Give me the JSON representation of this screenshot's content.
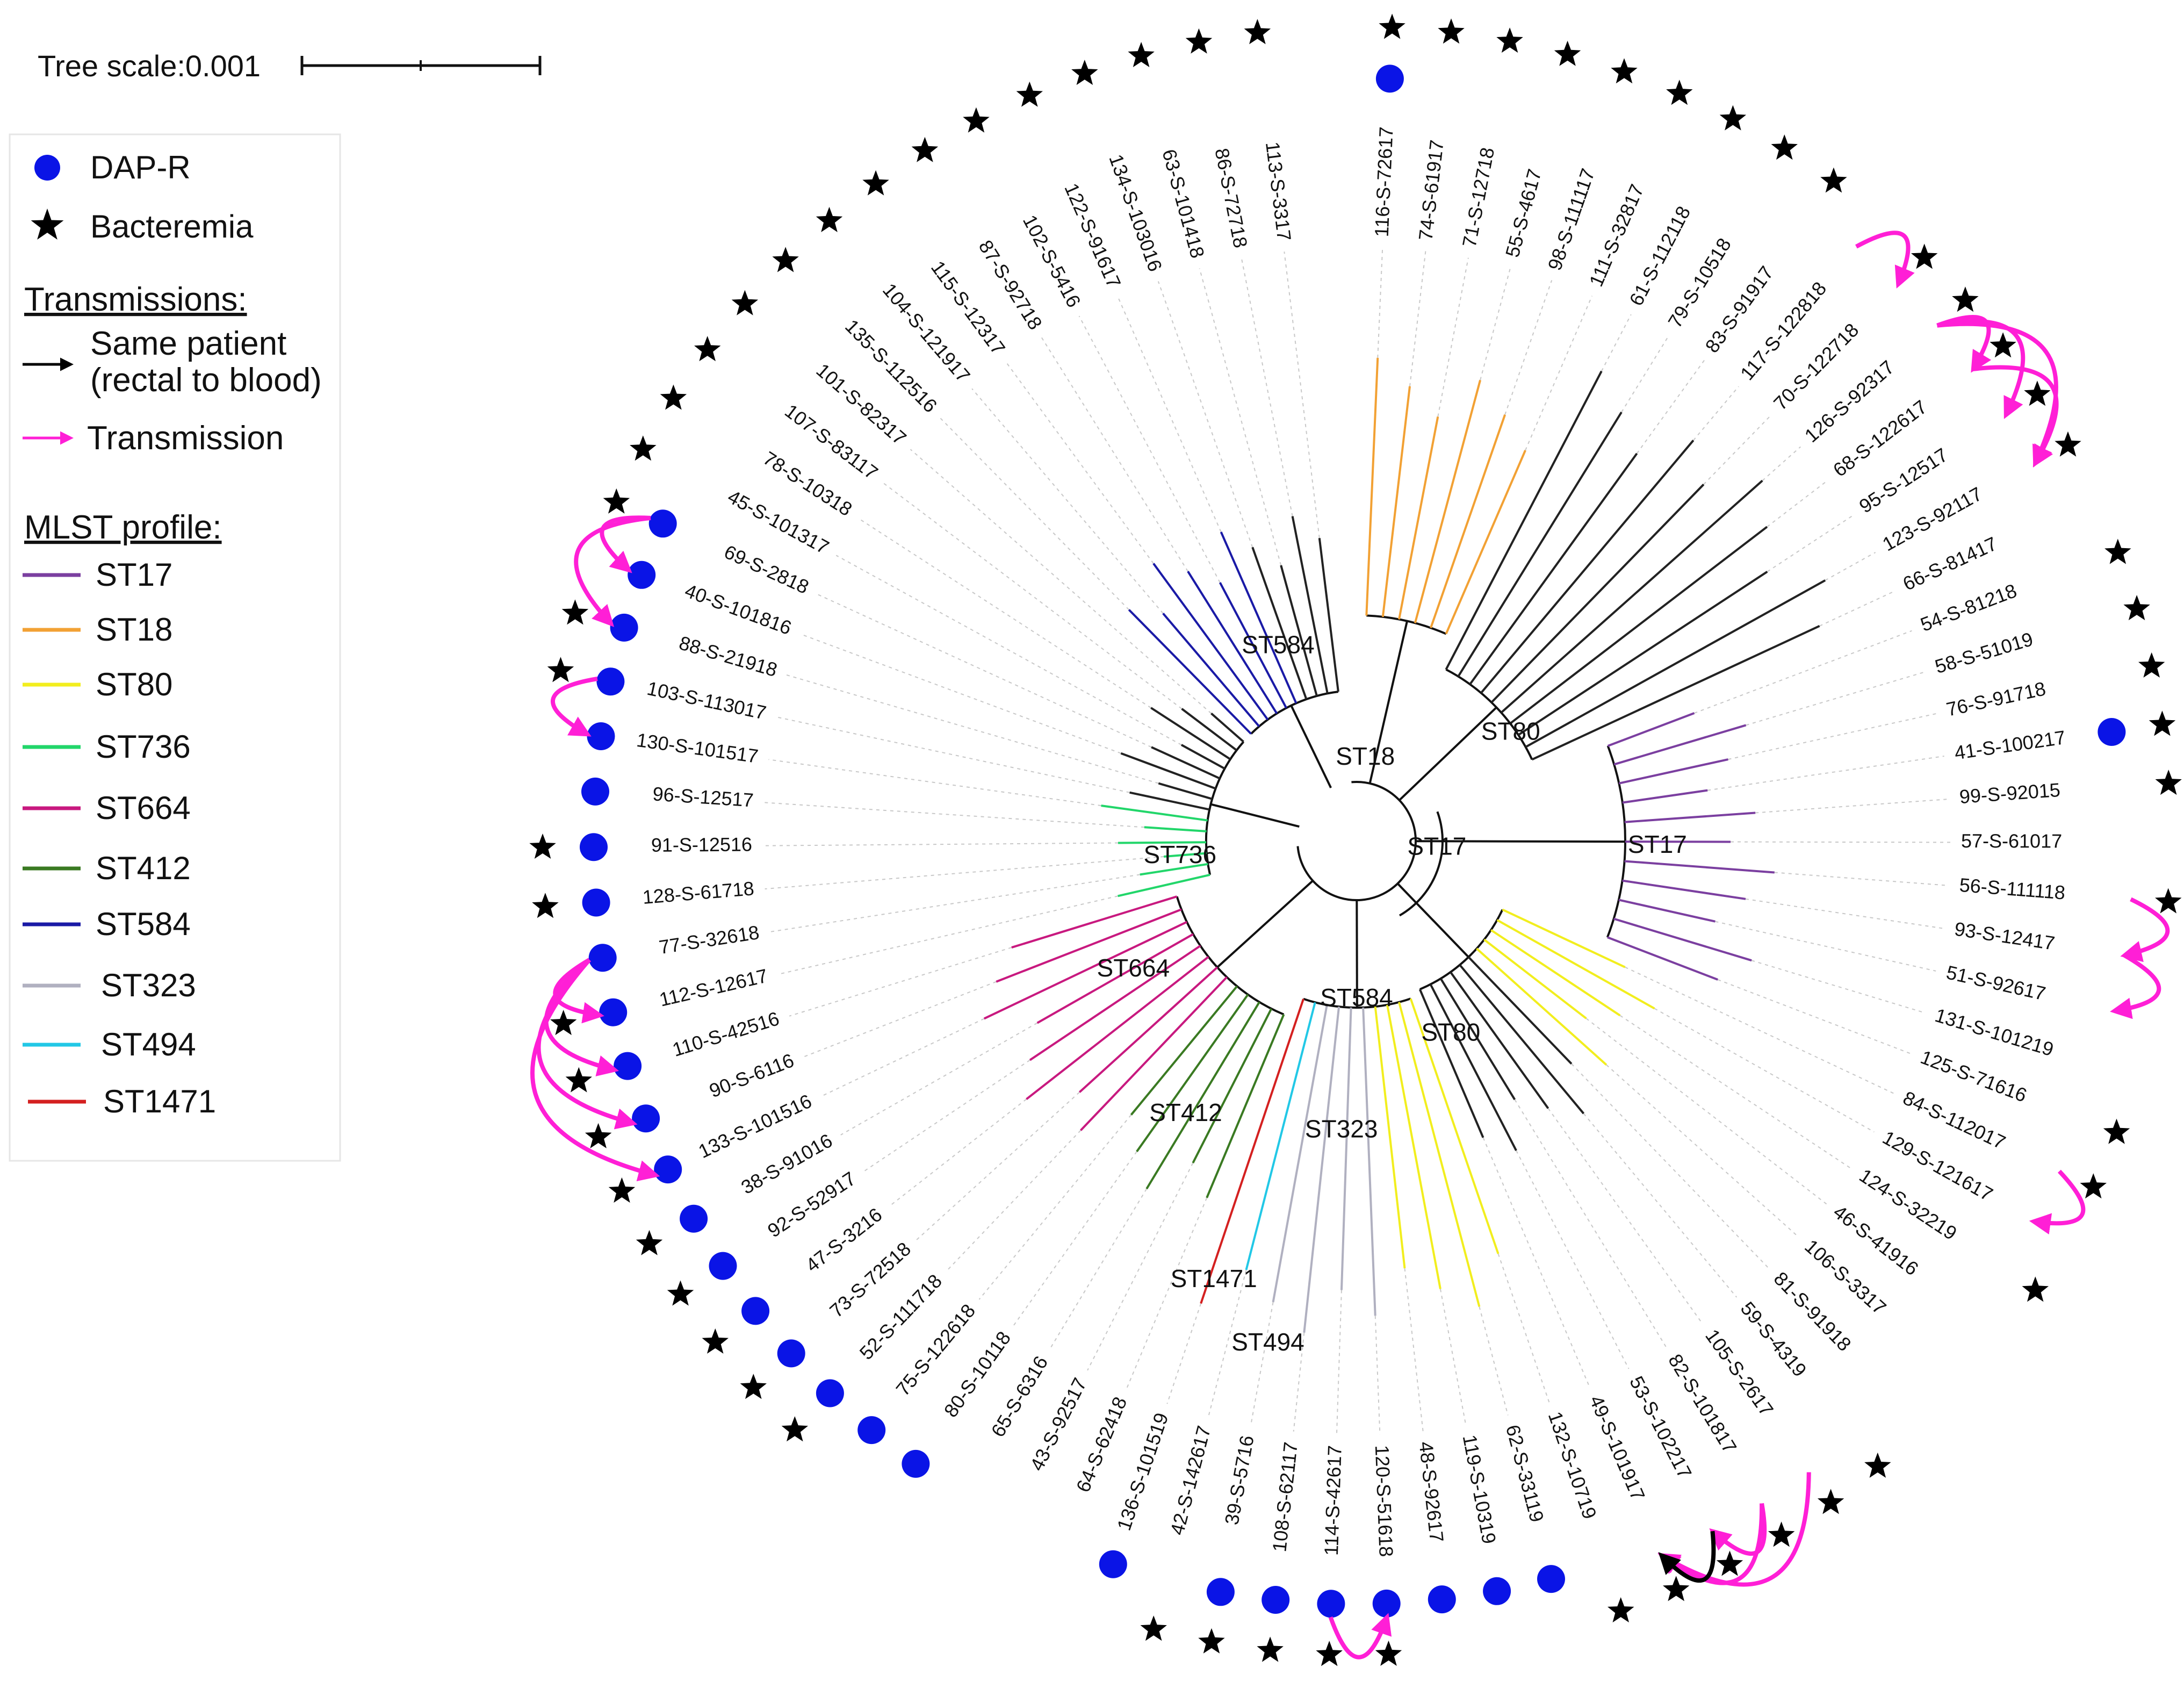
{
  "scale_bar": {
    "label": "Tree scale:0.001"
  },
  "legend": {
    "markers": [
      {
        "label": "DAP-R",
        "symbol": "circle",
        "color": "#0a14e6"
      },
      {
        "label": "Bacteremia",
        "symbol": "star",
        "color": "#000000"
      }
    ],
    "transmissions_title": "Transmissions:",
    "transmissions": [
      {
        "label_lines": [
          "Same patient",
          "(rectal to blood)"
        ],
        "color": "#000000"
      },
      {
        "label_lines": [
          "Transmission"
        ],
        "color": "#ff1fd6"
      }
    ],
    "mlst_title": "MLST profile:",
    "mlst": [
      {
        "label": "ST17",
        "color": "#7b3fa0"
      },
      {
        "label": "ST18",
        "color": "#f2a134"
      },
      {
        "label": "ST80",
        "color": "#f2ee1e"
      },
      {
        "label": "ST736",
        "color": "#22d66a"
      },
      {
        "label": "ST664",
        "color": "#c8197f"
      },
      {
        "label": "ST412",
        "color": "#3a7a22"
      },
      {
        "label": "ST584",
        "color": "#1a1aa6"
      },
      {
        "label": "ST323",
        "color": "#b0b0c0"
      },
      {
        "label": "ST494",
        "color": "#22c8e6"
      },
      {
        "label": "ST1471",
        "color": "#d42020"
      }
    ]
  },
  "tree": {
    "leaves": [
      "116-S-72617",
      "74-S-61917",
      "71-S-12718",
      "55-S-4617",
      "98-S-111117",
      "111-S-32817",
      "61-S-112118",
      "79-S-10518",
      "83-S-91917",
      "117-S-122818",
      "70-S-122718",
      "126-S-92317",
      "68-S-122617",
      "95-S-12517",
      "123-S-92117",
      "66-S-81417",
      "54-S-81218",
      "58-S-51019",
      "76-S-91718",
      "41-S-100217",
      "99-S-92015",
      "57-S-61017",
      "56-S-111118",
      "93-S-12417",
      "51-S-92617",
      "131-S-101219",
      "125-S-71616",
      "84-S-112017",
      "129-S-121617",
      "124-S-32219",
      "46-S-41916",
      "106-S-3317",
      "81-S-91918",
      "59-S-4319",
      "105-S-2617",
      "82-S-101817",
      "53-S-102217",
      "49-S-101917",
      "132-S-10719",
      "62-S-33119",
      "119-S-10319",
      "48-S-92617",
      "120-S-51618",
      "114-S-42617",
      "108-S-62117",
      "39-S-5716",
      "42-S-142617",
      "136-S-101519",
      "64-S-62418",
      "43-S-92517",
      "65-S-6316",
      "80-S-10118",
      "75-S-122618",
      "52-S-111718",
      "73-S-72518",
      "47-S-3216",
      "92-S-52917",
      "38-S-91016",
      "133-S-101516",
      "90-S-6116",
      "110-S-42516",
      "112-S-12617",
      "77-S-32618",
      "128-S-61718",
      "91-S-12516",
      "96-S-12517",
      "130-S-101517",
      "103-S-113017",
      "88-S-21918",
      "40-S-101816",
      "69-S-2818",
      "45-S-101317",
      "78-S-10318",
      "107-S-83117",
      "101-S-82317",
      "135-S-112516",
      "104-S-121917",
      "115-S-12317",
      "87-S-92718",
      "102-S-5416",
      "122-S-91617",
      "134-S-103016",
      "63-S-101418",
      "86-S-72718",
      "113-S-3317"
    ],
    "dap_r": [
      "116-S-72617",
      "41-S-100217",
      "62-S-33119",
      "119-S-10319",
      "48-S-92617",
      "120-S-51618",
      "114-S-42617",
      "108-S-62117",
      "39-S-5716",
      "136-S-101519",
      "80-S-10118",
      "75-S-122618",
      "52-S-111718",
      "73-S-72518",
      "47-S-3216",
      "92-S-52917",
      "38-S-91016",
      "133-S-101516",
      "90-S-6116",
      "110-S-42516",
      "112-S-12617",
      "77-S-32618",
      "128-S-61718",
      "91-S-12516",
      "96-S-12517",
      "130-S-101517",
      "103-S-113017",
      "88-S-21918",
      "40-S-101816",
      "69-S-2818"
    ],
    "bacteremia": [
      "116-S-72617",
      "74-S-61917",
      "71-S-12718",
      "55-S-4617",
      "98-S-111117",
      "111-S-32817",
      "61-S-112118",
      "79-S-10518",
      "83-S-91917",
      "70-S-122718",
      "126-S-92317",
      "68-S-122617",
      "95-S-12517",
      "123-S-92117",
      "54-S-81218",
      "58-S-51019",
      "76-S-91718",
      "41-S-100217",
      "99-S-92015",
      "56-S-111118",
      "125-S-71616",
      "84-S-112017",
      "124-S-32219",
      "59-S-4319",
      "105-S-2617",
      "82-S-101817",
      "53-S-102217",
      "49-S-101917",
      "132-S-10719",
      "120-S-51618",
      "114-S-42617",
      "108-S-62117",
      "39-S-5716",
      "42-S-142617",
      "52-S-111718",
      "73-S-72518",
      "47-S-3216",
      "92-S-52917",
      "38-S-91016",
      "133-S-101516",
      "90-S-6116",
      "110-S-42516",
      "112-S-12617",
      "128-S-61718",
      "91-S-12516",
      "103-S-113017",
      "88-S-21918",
      "69-S-2818",
      "45-S-101317",
      "78-S-10318",
      "107-S-83117",
      "101-S-82317",
      "135-S-112516",
      "104-S-121917",
      "115-S-12317",
      "87-S-92718",
      "102-S-5416",
      "122-S-91617",
      "134-S-103016",
      "63-S-101418",
      "86-S-72718",
      "113-S-3317"
    ],
    "clade_labels": [
      {
        "label": "ST584",
        "angle": -112,
        "r": 390,
        "color": "#1a1aa6"
      },
      {
        "label": "ST18",
        "angle": -84,
        "r": 155,
        "color": "#f2a134"
      },
      {
        "label": "ST80",
        "angle": -35,
        "r": 350,
        "color": "#f2ee1e"
      },
      {
        "label": "ST17",
        "angle": 1,
        "r": 560,
        "color": "#7b3fa0"
      },
      {
        "label": "ST736",
        "angle": 175,
        "r": 330,
        "color": "#22d66a"
      },
      {
        "label": "ST17",
        "angle": 5,
        "r": 150,
        "color": "#7b3fa0"
      },
      {
        "label": "ST664",
        "angle": 150,
        "r": 480,
        "color": "#c8197f"
      },
      {
        "label": "ST584",
        "angle": 90,
        "r": 295,
        "color": "#1a1aa6"
      },
      {
        "label": "ST80",
        "angle": 64,
        "r": 400,
        "color": "#f2ee1e"
      },
      {
        "label": "ST412",
        "angle": 122,
        "r": 600,
        "color": "#3a7a22"
      },
      {
        "label": "ST323",
        "angle": 93,
        "r": 540,
        "color": "#b0b0c0"
      },
      {
        "label": "ST1471",
        "angle": 108,
        "r": 860,
        "color": "#d42020"
      },
      {
        "label": "ST494",
        "angle": 100,
        "r": 950,
        "color": "#22c8e6"
      }
    ],
    "transmissions": [
      {
        "from": "117-S-122818",
        "to": "70-S-122718",
        "type": "transmission"
      },
      {
        "from": "126-S-92317",
        "to": "68-S-122617",
        "type": "transmission"
      },
      {
        "from": "126-S-92317",
        "to": "95-S-12517",
        "type": "transmission"
      },
      {
        "from": "126-S-92317",
        "to": "123-S-92117",
        "type": "transmission"
      },
      {
        "from": "68-S-122617",
        "to": "123-S-92117",
        "type": "transmission"
      },
      {
        "from": "56-S-111118",
        "to": "93-S-12417",
        "type": "transmission"
      },
      {
        "from": "93-S-12417",
        "to": "51-S-92617",
        "type": "transmission"
      },
      {
        "from": "84-S-112017",
        "to": "129-S-121617",
        "type": "transmission"
      },
      {
        "from": "82-S-101817",
        "to": "53-S-102217",
        "type": "transmission"
      },
      {
        "from": "82-S-101817",
        "to": "49-S-101917",
        "type": "transmission"
      },
      {
        "from": "105-S-2617",
        "to": "49-S-101917",
        "type": "transmission"
      },
      {
        "from": "53-S-102217",
        "to": "49-S-101917",
        "type": "same-patient"
      },
      {
        "from": "114-S-42617",
        "to": "120-S-51618",
        "type": "transmission"
      },
      {
        "from": "69-S-2818",
        "to": "40-S-101816",
        "type": "transmission"
      },
      {
        "from": "69-S-2818",
        "to": "88-S-21918",
        "type": "transmission"
      },
      {
        "from": "103-S-113017",
        "to": "130-S-101517",
        "type": "transmission"
      },
      {
        "from": "77-S-32618",
        "to": "112-S-12617",
        "type": "transmission"
      },
      {
        "from": "77-S-32618",
        "to": "110-S-42516",
        "type": "transmission"
      },
      {
        "from": "77-S-32618",
        "to": "90-S-6116",
        "type": "transmission"
      },
      {
        "from": "77-S-32618",
        "to": "133-S-101516",
        "type": "transmission"
      }
    ]
  }
}
